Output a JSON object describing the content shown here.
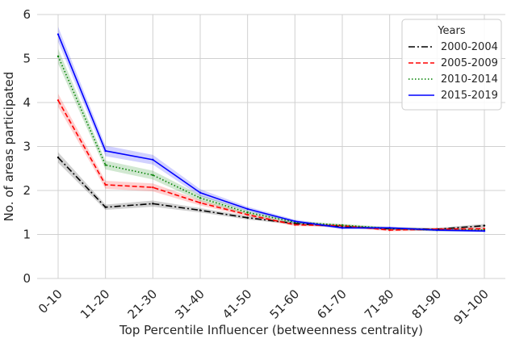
{
  "chart_data": {
    "type": "line",
    "title": "",
    "xlabel": "Top Percentile Influencer (betweenness centrality)",
    "ylabel": "No. of areas participated",
    "categories": [
      "0-10",
      "11-20",
      "21-30",
      "31-40",
      "41-50",
      "51-60",
      "61-70",
      "71-80",
      "81-90",
      "91-100"
    ],
    "ylim": [
      0,
      6
    ],
    "yticks": [
      "0",
      "1",
      "2",
      "3",
      "4",
      "5",
      "6"
    ],
    "grid": true,
    "legend": {
      "title": "Years",
      "placement": "top-right"
    },
    "series": [
      {
        "name": "2000-2004",
        "color": "#000000",
        "dash": "dashdot",
        "values": [
          2.75,
          1.62,
          1.7,
          1.55,
          1.38,
          1.25,
          1.18,
          1.13,
          1.12,
          1.2
        ],
        "ci": [
          0.12,
          0.06,
          0.07,
          0.05,
          0.04,
          0.03,
          0.03,
          0.03,
          0.03,
          0.04
        ]
      },
      {
        "name": "2005-2009",
        "color": "#ff0000",
        "dash": "dashed",
        "values": [
          4.05,
          2.13,
          2.07,
          1.72,
          1.45,
          1.22,
          1.2,
          1.1,
          1.12,
          1.13
        ],
        "ci": [
          0.15,
          0.09,
          0.09,
          0.06,
          0.04,
          0.03,
          0.03,
          0.03,
          0.03,
          0.04
        ]
      },
      {
        "name": "2010-2014",
        "color": "#008000",
        "dash": "dotted",
        "values": [
          5.05,
          2.58,
          2.35,
          1.83,
          1.5,
          1.28,
          1.21,
          1.14,
          1.1,
          1.1
        ],
        "ci": [
          0.17,
          0.1,
          0.1,
          0.07,
          0.05,
          0.03,
          0.03,
          0.03,
          0.03,
          0.03
        ]
      },
      {
        "name": "2015-2019",
        "color": "#0000ff",
        "dash": "solid",
        "values": [
          5.55,
          2.9,
          2.7,
          1.95,
          1.58,
          1.3,
          1.15,
          1.15,
          1.1,
          1.08
        ],
        "ci": [
          0.17,
          0.12,
          0.11,
          0.08,
          0.05,
          0.04,
          0.03,
          0.03,
          0.03,
          0.03
        ]
      }
    ]
  }
}
